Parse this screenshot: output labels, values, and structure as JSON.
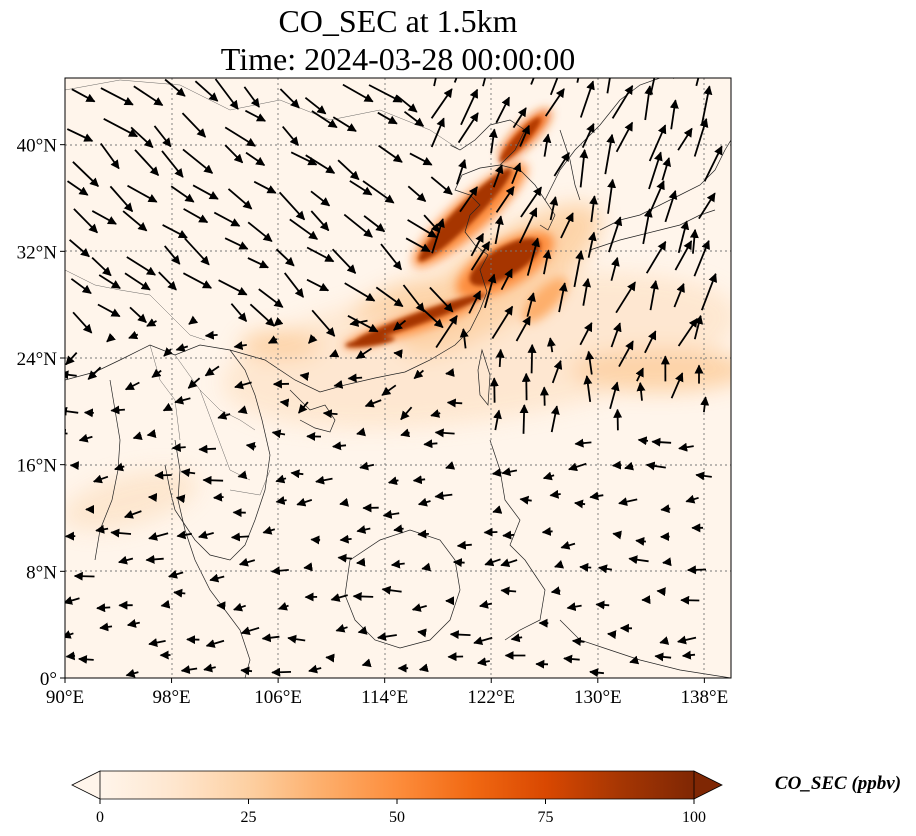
{
  "chart_data": {
    "type": "map",
    "title_line1": "CO_SEC at 1.5km",
    "title_line2": "Time: 2024-03-28 00:00:00",
    "xlim": [
      90,
      140
    ],
    "ylim": [
      0,
      45
    ],
    "x_ticks": [
      90,
      98,
      106,
      114,
      122,
      130,
      138
    ],
    "x_tick_labels": [
      "90°E",
      "98°E",
      "106°E",
      "114°E",
      "122°E",
      "130°E",
      "138°E"
    ],
    "y_ticks": [
      0,
      8,
      16,
      24,
      32,
      40
    ],
    "y_tick_labels": [
      "0°",
      "8°N",
      "16°N",
      "24°N",
      "32°N",
      "40°N"
    ],
    "grid": true,
    "colorbar": {
      "label": "CO_SEC (ppbv)",
      "min": 0,
      "max": 100,
      "ticks": [
        0,
        25,
        50,
        75,
        100
      ],
      "tick_labels": [
        "0",
        "25",
        "50",
        "75",
        "100"
      ],
      "extend": "both",
      "colormap": [
        "#fff5eb",
        "#fee6ce",
        "#fdd0a2",
        "#fdae6b",
        "#fd8d3c",
        "#f16913",
        "#d94801",
        "#a63603",
        "#7f2704"
      ]
    },
    "plume_cores": [
      {
        "lon": 116.5,
        "lat": 31.5,
        "value": 100
      },
      {
        "lon": 118.0,
        "lat": 33.5,
        "value": 100
      },
      {
        "lon": 120.0,
        "lat": 36.0,
        "value": 100
      },
      {
        "lon": 122.5,
        "lat": 39.5,
        "value": 95
      },
      {
        "lon": 124.5,
        "lat": 42.0,
        "value": 80
      },
      {
        "lon": 121.5,
        "lat": 30.5,
        "value": 100
      },
      {
        "lon": 117.0,
        "lat": 27.5,
        "value": 95
      },
      {
        "lon": 112.5,
        "lat": 25.0,
        "value": 85
      }
    ]
  }
}
